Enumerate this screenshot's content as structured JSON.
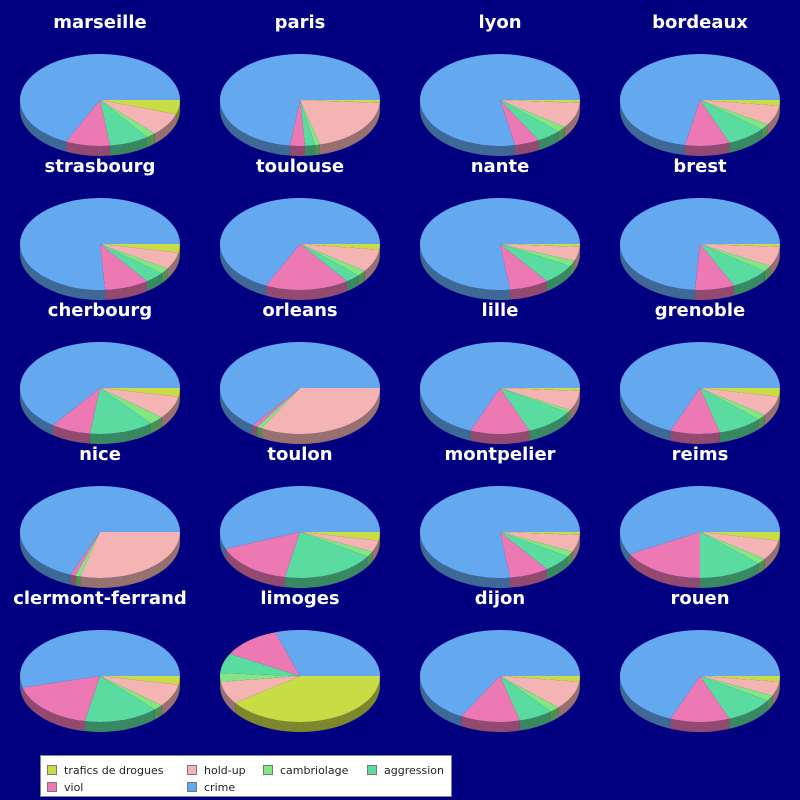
{
  "chart_data": {
    "type": "pie",
    "style": "3d",
    "categories": [
      "trafics de drogues",
      "hold-up",
      "cambriolage",
      "aggression",
      "viol",
      "crime"
    ],
    "colors": [
      "#c8dc46",
      "#f4b4b4",
      "#82e682",
      "#5adca0",
      "#ec78b4",
      "#64a8f0"
    ],
    "legend_position": "bottom",
    "charts": [
      {
        "title": "marseille",
        "values": [
          0.05,
          0.08,
          0.02,
          0.08,
          0.09,
          0.68
        ]
      },
      {
        "title": "paris",
        "values": [
          0.01,
          0.2,
          0.01,
          0.02,
          0.03,
          0.73
        ]
      },
      {
        "title": "lyon",
        "values": [
          0.01,
          0.09,
          0.02,
          0.05,
          0.05,
          0.78
        ]
      },
      {
        "title": "bordeaux",
        "values": [
          0.02,
          0.07,
          0.02,
          0.08,
          0.09,
          0.72
        ]
      },
      {
        "title": "strasbourg",
        "values": [
          0.03,
          0.06,
          0.02,
          0.04,
          0.09,
          0.76
        ]
      },
      {
        "title": "toulouse",
        "values": [
          0.02,
          0.08,
          0.02,
          0.03,
          0.17,
          0.68
        ]
      },
      {
        "title": "nante",
        "values": [
          0.01,
          0.05,
          0.02,
          0.07,
          0.08,
          0.77
        ]
      },
      {
        "title": "brest",
        "values": [
          0.01,
          0.07,
          0.02,
          0.08,
          0.08,
          0.74
        ]
      },
      {
        "title": "cherbourg",
        "values": [
          0.03,
          0.08,
          0.03,
          0.13,
          0.08,
          0.65
        ]
      },
      {
        "title": "orleans",
        "values": [
          0.0,
          0.33,
          0.01,
          0.0,
          0.01,
          0.65
        ]
      },
      {
        "title": "lille",
        "values": [
          0.01,
          0.07,
          0.01,
          0.1,
          0.12,
          0.69
        ]
      },
      {
        "title": "grenoble",
        "values": [
          0.03,
          0.07,
          0.02,
          0.09,
          0.1,
          0.69
        ]
      },
      {
        "title": "nice",
        "values": [
          0.0,
          0.29,
          0.01,
          0.0,
          0.01,
          0.69
        ]
      },
      {
        "title": "toulon",
        "values": [
          0.03,
          0.04,
          0.02,
          0.19,
          0.16,
          0.56
        ]
      },
      {
        "title": "montpelier",
        "values": [
          0.01,
          0.06,
          0.02,
          0.06,
          0.08,
          0.77
        ]
      },
      {
        "title": "reims",
        "values": [
          0.03,
          0.07,
          0.02,
          0.13,
          0.17,
          0.58
        ]
      },
      {
        "title": "clermont-ferrand",
        "values": [
          0.03,
          0.08,
          0.02,
          0.15,
          0.18,
          0.54
        ]
      },
      {
        "title": "limoges",
        "values": [
          0.4,
          0.08,
          0.03,
          0.07,
          0.12,
          0.3
        ]
      },
      {
        "title": "dijon",
        "values": [
          0.02,
          0.1,
          0.02,
          0.07,
          0.12,
          0.67
        ]
      },
      {
        "title": "rouen",
        "values": [
          0.02,
          0.05,
          0.02,
          0.1,
          0.12,
          0.69
        ]
      }
    ]
  }
}
